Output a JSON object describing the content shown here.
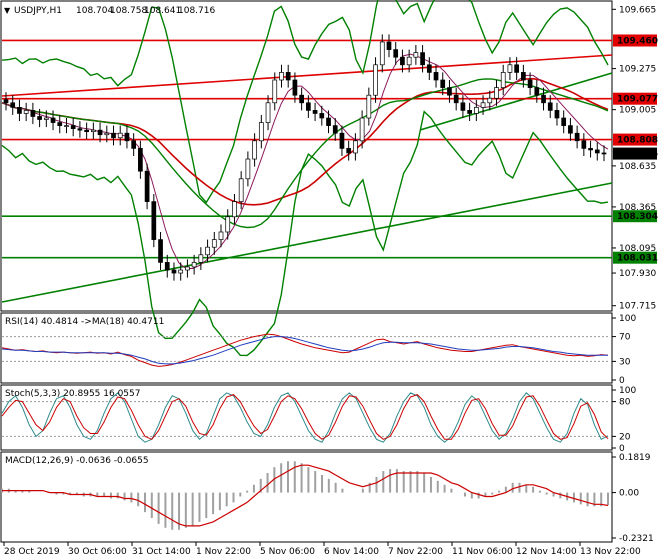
{
  "chart_data": [
    {
      "panel": "price",
      "type": "candlestick",
      "title": "USDJPY,H1",
      "ohlc_header": [
        "108.704",
        "108.758",
        "108.641",
        "108.716"
      ],
      "ylim": [
        107.7,
        109.7
      ],
      "yticks": [
        "109.665",
        "109.275",
        "109.005",
        "108.635",
        "108.365",
        "108.095",
        "107.930",
        "107.715"
      ],
      "ytick_values": [
        109.665,
        109.275,
        109.005,
        108.635,
        108.365,
        108.095,
        107.93,
        107.715
      ],
      "close": [
        109.05,
        109.02,
        108.98,
        109.0,
        108.96,
        108.94,
        108.95,
        108.92,
        108.9,
        108.9,
        108.88,
        108.87,
        108.86,
        108.87,
        108.84,
        108.85,
        108.82,
        108.85,
        108.8,
        108.75,
        108.6,
        108.4,
        108.15,
        108.0,
        107.95,
        107.93,
        107.95,
        107.97,
        108.0,
        108.05,
        108.1,
        108.15,
        108.2,
        108.3,
        108.4,
        108.55,
        108.68,
        108.8,
        108.92,
        109.05,
        109.2,
        109.25,
        109.2,
        109.1,
        109.05,
        109.0,
        108.98,
        108.95,
        108.9,
        108.85,
        108.75,
        108.72,
        108.8,
        108.95,
        109.1,
        109.3,
        109.45,
        109.4,
        109.35,
        109.3,
        109.35,
        109.38,
        109.3,
        109.25,
        109.2,
        109.15,
        109.1,
        109.05,
        109.0,
        108.98,
        109.02,
        109.05,
        109.08,
        109.15,
        109.25,
        109.3,
        109.25,
        109.2,
        109.15,
        109.1,
        109.05,
        109.0,
        108.95,
        108.9,
        108.85,
        108.8,
        108.75,
        108.74,
        108.72,
        108.716
      ],
      "levels": [
        {
          "label": "109.460",
          "value": 109.46,
          "color": "#e00000"
        },
        {
          "label": "109.077",
          "value": 109.077,
          "color": "#e00000"
        },
        {
          "label": "108.808",
          "value": 108.808,
          "color": "#e00000"
        },
        {
          "label": "108.716",
          "value": 108.716,
          "color": "#000000"
        },
        {
          "label": "108.304",
          "value": 108.304,
          "color": "#008000"
        },
        {
          "label": "108.031",
          "value": 108.031,
          "color": "#008000"
        }
      ]
    },
    {
      "panel": "rsi",
      "type": "line",
      "title": "RSI(14) 40.4814  ->MA(18) 40.4711",
      "ylim": [
        0,
        100
      ],
      "yticks": [
        "100",
        "70",
        "30",
        "0"
      ],
      "ytick_values": [
        100,
        70,
        30,
        0
      ],
      "levels": [
        70,
        30
      ],
      "series": [
        {
          "values": [
            52,
            50,
            48,
            49,
            47,
            46,
            47,
            45,
            44,
            45,
            44,
            43,
            44,
            45,
            43,
            44,
            42,
            45,
            41,
            38,
            32,
            28,
            24,
            22,
            23,
            25,
            28,
            32,
            36,
            40,
            44,
            48,
            52,
            56,
            60,
            64,
            67,
            70,
            72,
            74,
            73,
            70,
            66,
            62,
            58,
            55,
            52,
            50,
            48,
            46,
            44,
            45,
            50,
            55,
            60,
            65,
            66,
            62,
            60,
            58,
            60,
            62,
            58,
            55,
            52,
            50,
            48,
            47,
            46,
            46,
            48,
            50,
            52,
            54,
            56,
            57,
            54,
            52,
            50,
            48,
            46,
            44,
            42,
            40,
            39,
            40,
            38,
            39,
            41,
            40
          ]
        },
        {
          "values": [
            50,
            49,
            48,
            48,
            47,
            46,
            46,
            45,
            45,
            45,
            44,
            44,
            44,
            44,
            44,
            44,
            43,
            43,
            42,
            40,
            37,
            34,
            30,
            27,
            26,
            26,
            27,
            29,
            31,
            34,
            37,
            40,
            44,
            48,
            52,
            56,
            59,
            62,
            65,
            68,
            70,
            70,
            69,
            67,
            64,
            61,
            58,
            55,
            52,
            50,
            48,
            47,
            48,
            50,
            53,
            57,
            60,
            61,
            61,
            60,
            60,
            60,
            59,
            58,
            56,
            54,
            52,
            50,
            49,
            48,
            48,
            49,
            50,
            51,
            53,
            54,
            54,
            53,
            52,
            50,
            48,
            46,
            45,
            43,
            42,
            41,
            40,
            40,
            40,
            40
          ]
        }
      ]
    },
    {
      "panel": "stochastic",
      "type": "line",
      "title": "Stoch(5,3,3) 20.8955 16.0557",
      "ylim": [
        0,
        100
      ],
      "yticks": [
        "100",
        "80",
        "20",
        "0"
      ],
      "ytick_values": [
        100,
        80,
        20,
        0
      ],
      "levels": [
        80,
        20
      ],
      "series": [
        {
          "values": [
            60,
            80,
            90,
            70,
            40,
            20,
            30,
            60,
            85,
            90,
            70,
            40,
            20,
            15,
            30,
            60,
            85,
            95,
            80,
            50,
            20,
            10,
            15,
            40,
            70,
            90,
            85,
            60,
            30,
            15,
            25,
            55,
            85,
            95,
            90,
            70,
            45,
            25,
            20,
            40,
            70,
            90,
            95,
            80,
            55,
            30,
            15,
            10,
            30,
            60,
            85,
            95,
            85,
            60,
            35,
            15,
            10,
            25,
            55,
            80,
            95,
            90,
            70,
            40,
            20,
            10,
            20,
            45,
            75,
            90,
            80,
            55,
            30,
            15,
            25,
            50,
            80,
            95,
            85,
            60,
            35,
            15,
            10,
            25,
            60,
            85,
            75,
            40,
            15,
            21
          ]
        },
        {
          "values": [
            55,
            70,
            82,
            80,
            60,
            40,
            30,
            45,
            70,
            85,
            80,
            55,
            35,
            25,
            25,
            45,
            70,
            88,
            85,
            65,
            40,
            20,
            15,
            30,
            55,
            80,
            85,
            72,
            45,
            25,
            22,
            40,
            68,
            88,
            92,
            80,
            58,
            38,
            25,
            32,
            55,
            80,
            90,
            85,
            68,
            45,
            25,
            15,
            22,
            45,
            72,
            90,
            88,
            72,
            48,
            25,
            15,
            20,
            40,
            68,
            88,
            92,
            80,
            55,
            32,
            15,
            15,
            32,
            60,
            82,
            85,
            68,
            42,
            22,
            22,
            38,
            65,
            88,
            90,
            72,
            48,
            25,
            15,
            18,
            42,
            72,
            78,
            58,
            28,
            16
          ]
        }
      ]
    },
    {
      "panel": "macd",
      "type": "bar+line",
      "title": "MACD(12,26,9) -0.0636 -0.0655",
      "ylim": [
        -0.2321,
        0.1819
      ],
      "yticks": [
        "0.1819",
        "0.00",
        "-0.2321"
      ],
      "ytick_values": [
        0.1819,
        0.0,
        -0.2321
      ],
      "series": [
        {
          "name": "",
          "values": [
            0.02,
            0.02,
            0.01,
            0.01,
            0.01,
            0.0,
            0.0,
            0.0,
            -0.01,
            -0.01,
            -0.01,
            -0.01,
            -0.02,
            -0.02,
            -0.02,
            -0.02,
            -0.03,
            -0.03,
            -0.04,
            -0.05,
            -0.07,
            -0.1,
            -0.13,
            -0.16,
            -0.18,
            -0.19,
            -0.19,
            -0.18,
            -0.17,
            -0.15,
            -0.13,
            -0.11,
            -0.09,
            -0.07,
            -0.05,
            -0.02,
            0.01,
            0.04,
            0.07,
            0.1,
            0.13,
            0.15,
            0.16,
            0.16,
            0.15,
            0.13,
            0.11,
            0.09,
            0.07,
            0.05,
            0.02,
            0.0,
            0.0,
            0.02,
            0.05,
            0.08,
            0.11,
            0.12,
            0.12,
            0.11,
            0.11,
            0.11,
            0.1,
            0.08,
            0.06,
            0.04,
            0.02,
            0.0,
            -0.02,
            -0.03,
            -0.03,
            -0.02,
            -0.01,
            0.01,
            0.03,
            0.05,
            0.05,
            0.04,
            0.03,
            0.01,
            -0.01,
            -0.02,
            -0.03,
            -0.04,
            -0.05,
            -0.06,
            -0.07,
            -0.07,
            -0.07,
            -0.064
          ]
        },
        {
          "name": "",
          "values": [
            0.01,
            0.01,
            0.01,
            0.01,
            0.01,
            0.01,
            0.01,
            0.0,
            0.0,
            0.0,
            -0.01,
            -0.01,
            -0.01,
            -0.01,
            -0.02,
            -0.02,
            -0.02,
            -0.02,
            -0.03,
            -0.03,
            -0.04,
            -0.06,
            -0.08,
            -0.1,
            -0.12,
            -0.14,
            -0.16,
            -0.17,
            -0.17,
            -0.17,
            -0.16,
            -0.15,
            -0.13,
            -0.11,
            -0.09,
            -0.07,
            -0.05,
            -0.02,
            0.01,
            0.04,
            0.07,
            0.09,
            0.11,
            0.13,
            0.14,
            0.14,
            0.13,
            0.12,
            0.11,
            0.09,
            0.07,
            0.05,
            0.04,
            0.03,
            0.04,
            0.05,
            0.07,
            0.09,
            0.1,
            0.1,
            0.1,
            0.1,
            0.1,
            0.1,
            0.09,
            0.07,
            0.05,
            0.04,
            0.02,
            0.0,
            -0.01,
            -0.02,
            -0.02,
            -0.01,
            0.0,
            0.02,
            0.03,
            0.04,
            0.04,
            0.03,
            0.02,
            0.0,
            -0.01,
            -0.02,
            -0.03,
            -0.04,
            -0.05,
            -0.06,
            -0.06,
            -0.066
          ]
        }
      ]
    }
  ],
  "x_axis_labels": [
    "28 Oct 2019",
    "30 Oct 06:00",
    "31 Oct 14:00",
    "1 Nov 22:00",
    "5 Nov 06:00",
    "6 Nov 14:00",
    "7 Nov 22:00",
    "11 Nov 06:00",
    "12 Nov 14:00",
    "13 Nov 22:00"
  ],
  "colors": {
    "support": "#008000",
    "resistance": "#e00000",
    "candles": "#000000",
    "ma_slow": "#cc0000",
    "ma_fast": "#1b5e20",
    "rsi": "#cc0000",
    "rsi_ma": "#1f3fbf",
    "stoch_main": "#2e8b8b",
    "stoch_signal": "#cc0000",
    "macd_hist": "#a0a0a0",
    "macd_signal": "#cc0000"
  }
}
